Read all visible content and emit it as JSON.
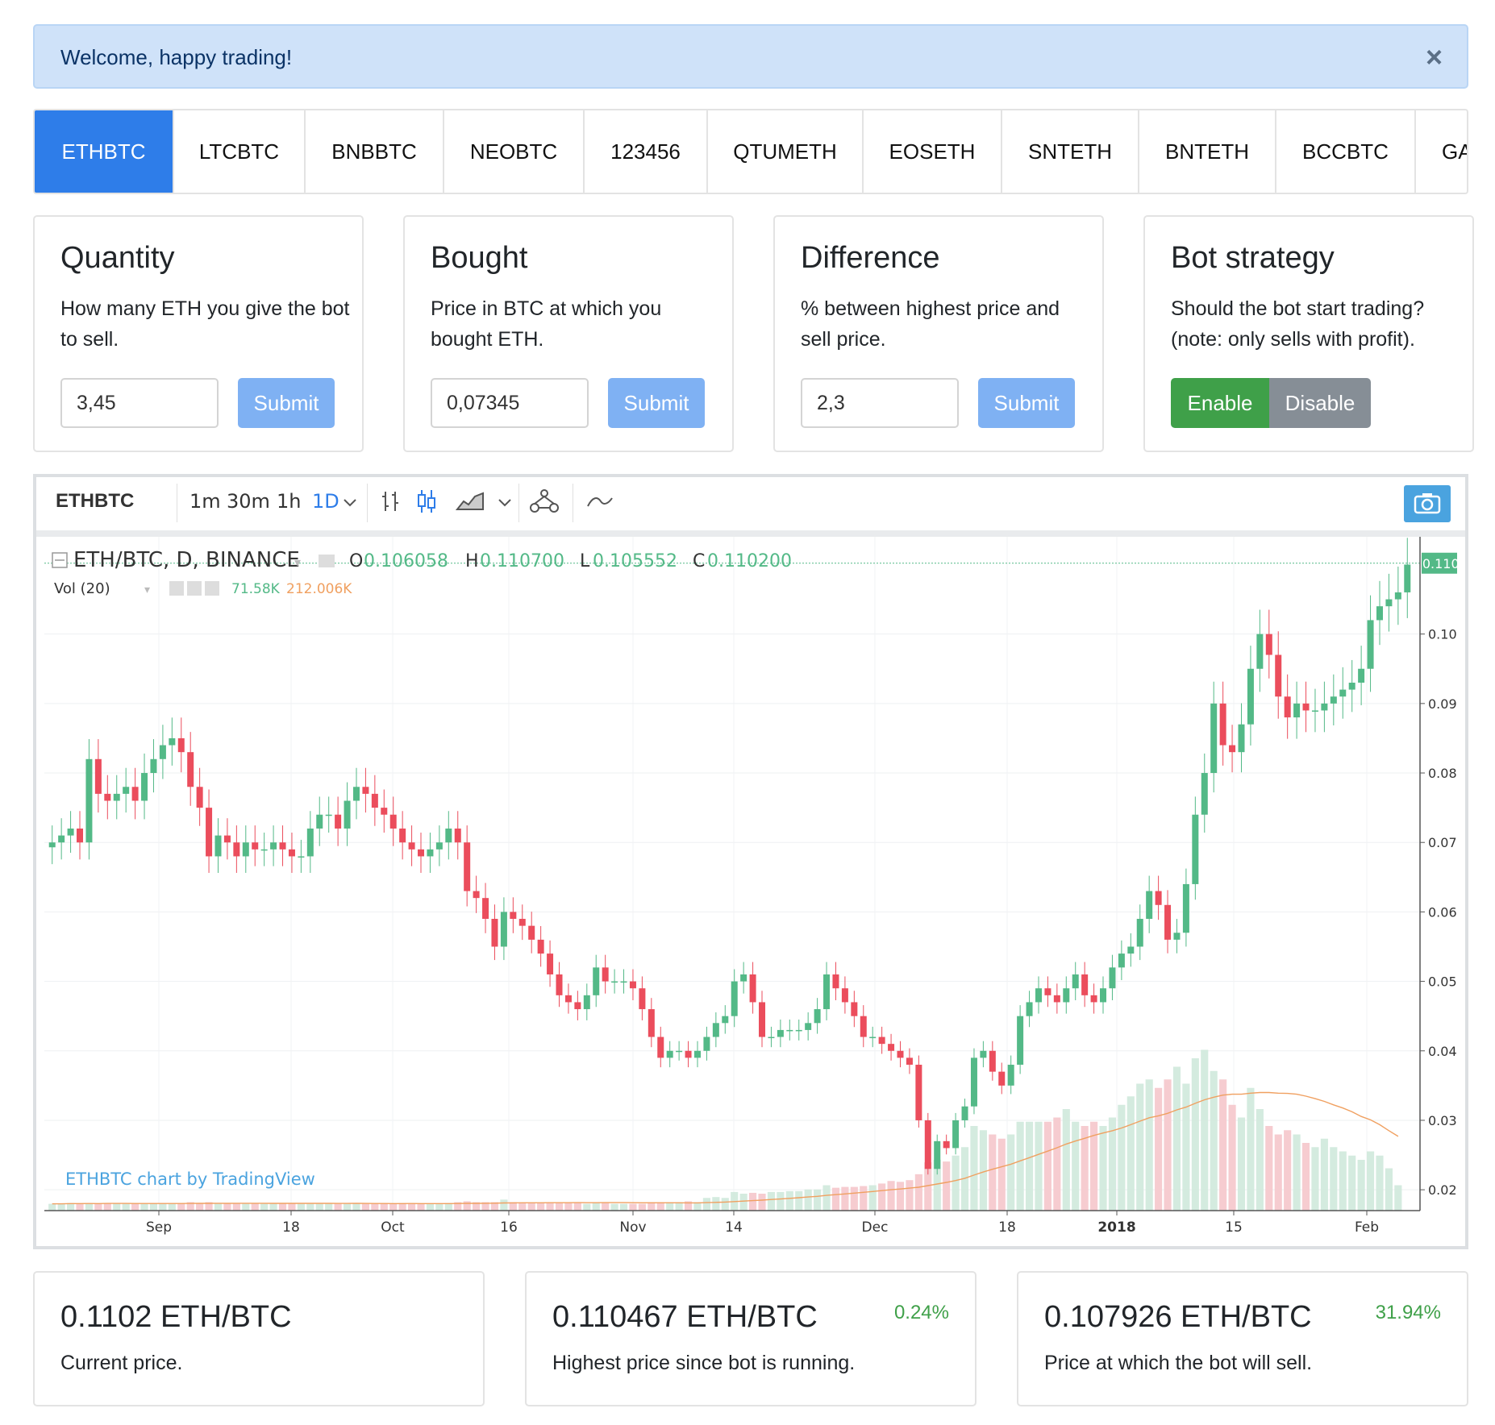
{
  "alert": {
    "text": "Welcome, happy trading!",
    "close": "×"
  },
  "tabs": [
    "ETHBTC",
    "LTCBTC",
    "BNBBTC",
    "NEOBTC",
    "123456",
    "QTUMETH",
    "EOSETH",
    "SNTETH",
    "BNTETH",
    "BCCBTC",
    "GAS"
  ],
  "cards": {
    "quantity": {
      "title": "Quantity",
      "desc": "How many ETH you give the bot to sell.",
      "value": "3,45",
      "button": "Submit"
    },
    "bought": {
      "title": "Bought",
      "desc": "Price in BTC at which you bought ETH.",
      "value": "0,07345",
      "button": "Submit"
    },
    "difference": {
      "title": "Difference",
      "desc": "% between highest price and sell price.",
      "value": "2,3",
      "button": "Submit"
    },
    "strategy": {
      "title": "Bot strategy",
      "desc": "Should the bot start trading? (note: only sells with profit).",
      "enable": "Enable",
      "disable": "Disable"
    }
  },
  "chart_toolbar": {
    "symbol": "ETHBTC",
    "intervals": [
      "1m",
      "30m",
      "1h",
      "1D"
    ],
    "active_interval": "1D",
    "icons": [
      "chevron-down-icon",
      "bar-chart-icon",
      "candles-icon",
      "area-chart-icon",
      "indicators-icon",
      "compare-icon",
      "camera-icon"
    ]
  },
  "chart_legend": {
    "title": "ETH/BTC, D, BINANCE",
    "o_label": "O",
    "o_value": "0.106058",
    "h_label": "H",
    "h_value": "0.110700",
    "l_label": "L",
    "l_value": "0.105552",
    "c_label": "C",
    "c_value": "0.110200",
    "vol_label": "Vol (20)",
    "vol_value": "71.58K",
    "vol_ma": "212.006K",
    "attribution": "ETHBTC chart by TradingView"
  },
  "chart_data": {
    "type": "candlestick",
    "symbol": "ETH/BTC",
    "interval": "D",
    "exchange": "BINANCE",
    "ylim": [
      0.017,
      0.114
    ],
    "y_ticks": [
      "0.020000",
      "0.030000",
      "0.040000",
      "0.050000",
      "0.060000",
      "0.070000",
      "0.080000",
      "0.090000",
      "0.100000"
    ],
    "x_ticks": [
      "Sep",
      "18",
      "Oct",
      "16",
      "Nov",
      "14",
      "Dec",
      "18",
      "2018",
      "15",
      "Feb"
    ],
    "last_price": "0.110200",
    "close_series": [
      0.07,
      0.071,
      0.072,
      0.07,
      0.082,
      0.077,
      0.076,
      0.077,
      0.078,
      0.076,
      0.08,
      0.082,
      0.084,
      0.085,
      0.083,
      0.078,
      0.075,
      0.068,
      0.071,
      0.07,
      0.068,
      0.07,
      0.069,
      0.069,
      0.07,
      0.069,
      0.068,
      0.068,
      0.072,
      0.074,
      0.074,
      0.072,
      0.076,
      0.078,
      0.077,
      0.075,
      0.074,
      0.072,
      0.07,
      0.069,
      0.068,
      0.069,
      0.07,
      0.072,
      0.07,
      0.063,
      0.062,
      0.059,
      0.055,
      0.06,
      0.059,
      0.058,
      0.056,
      0.054,
      0.051,
      0.048,
      0.047,
      0.046,
      0.048,
      0.052,
      0.05,
      0.05,
      0.05,
      0.049,
      0.046,
      0.042,
      0.039,
      0.04,
      0.04,
      0.039,
      0.04,
      0.042,
      0.044,
      0.045,
      0.05,
      0.051,
      0.047,
      0.042,
      0.042,
      0.043,
      0.043,
      0.043,
      0.044,
      0.046,
      0.051,
      0.049,
      0.047,
      0.045,
      0.042,
      0.042,
      0.041,
      0.04,
      0.039,
      0.038,
      0.03,
      0.023,
      0.027,
      0.026,
      0.03,
      0.032,
      0.039,
      0.04,
      0.037,
      0.035,
      0.038,
      0.045,
      0.047,
      0.049,
      0.048,
      0.047,
      0.049,
      0.051,
      0.048,
      0.047,
      0.049,
      0.052,
      0.054,
      0.055,
      0.059,
      0.063,
      0.061,
      0.056,
      0.057,
      0.064,
      0.074,
      0.08,
      0.09,
      0.084,
      0.083,
      0.087,
      0.095,
      0.1,
      0.097,
      0.091,
      0.088,
      0.09,
      0.089,
      0.089,
      0.09,
      0.091,
      0.092,
      0.093,
      0.095,
      0.102,
      0.104,
      0.105,
      0.106,
      0.11
    ],
    "volume_level_note": "volume bars rise sharply from December onward",
    "volume_series": [
      0.8,
      0.8,
      0.9,
      0.8,
      0.9,
      0.8,
      0.9,
      0.9,
      0.8,
      0.8,
      0.8,
      0.9,
      0.8,
      0.8,
      0.9,
      1.0,
      0.9,
      1.0,
      0.9,
      0.8,
      0.9,
      0.8,
      0.9,
      0.8,
      0.8,
      0.8,
      0.9,
      0.8,
      0.8,
      0.8,
      0.8,
      0.8,
      0.8,
      0.9,
      0.8,
      0.8,
      0.9,
      0.8,
      0.9,
      0.9,
      0.8,
      0.8,
      0.8,
      0.9,
      1.0,
      1.1,
      1.0,
      1.0,
      1.0,
      1.3,
      1.0,
      0.9,
      0.9,
      0.9,
      0.9,
      0.9,
      0.9,
      0.9,
      0.8,
      0.9,
      0.9,
      0.8,
      0.8,
      0.8,
      0.8,
      1.0,
      1.0,
      1.0,
      1.0,
      1.1,
      1.0,
      1.5,
      1.6,
      1.5,
      2.2,
      2.0,
      2.1,
      2.0,
      2.2,
      2.2,
      2.3,
      2.3,
      2.5,
      2.5,
      3.0,
      2.7,
      2.8,
      2.8,
      2.9,
      3.0,
      3.2,
      3.5,
      3.4,
      3.6,
      4.3,
      5.7,
      6.0,
      5.8,
      6.5,
      7.5,
      10.0,
      9.5,
      9.0,
      8.5,
      9.0,
      10.5,
      10.5,
      10.5,
      10.5,
      11.0,
      12.0,
      10.5,
      10.0,
      10.5,
      10.0,
      11.0,
      12.5,
      13.5,
      15.0,
      15.5,
      14.5,
      15.5,
      17.0,
      15.0,
      18.0,
      19.0,
      16.5,
      15.5,
      12.5,
      11.0,
      14.5,
      12.0,
      10.0,
      9.0,
      9.5,
      9.0,
      8.0,
      7.5,
      8.5,
      7.5,
      7.0,
      6.5,
      6.0,
      7.0,
      6.5,
      5.0,
      3.0
    ],
    "volume_ma_note": "orange 20-period moving average line over volume"
  },
  "summary": [
    {
      "value": "0.1102 ETH/BTC",
      "label": "Current price.",
      "pct": ""
    },
    {
      "value": "0.110467 ETH/BTC",
      "label": "Highest price since bot is running.",
      "pct": "0.24%"
    },
    {
      "value": "0.107926 ETH/BTC",
      "label": "Price at which the bot will sell.",
      "pct": "31.94%"
    }
  ],
  "colors": {
    "up": "#53b987",
    "down": "#eb4d5c",
    "accent": "#2e7de9",
    "enable": "#3fa049",
    "disable": "#868e96",
    "submit": "#7fb1f3"
  }
}
